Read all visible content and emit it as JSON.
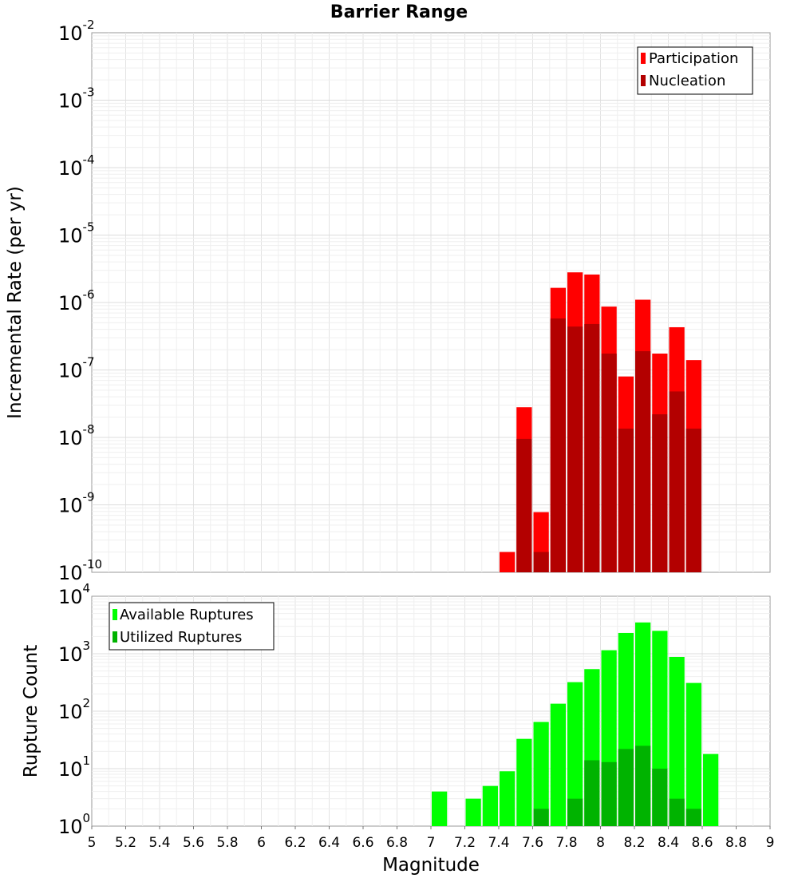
{
  "chart_data": [
    {
      "type": "bar",
      "title": "Barrier Range",
      "xlabel": "",
      "ylabel": "Incremental Rate (per yr)",
      "yscale": "log",
      "ylim": [
        1e-10,
        0.01
      ],
      "xlim": [
        5,
        9
      ],
      "ytick_exponents": [
        "-2",
        "-3",
        "-4",
        "-5",
        "-6",
        "-7",
        "-8",
        "-9",
        "-10"
      ],
      "grid": true,
      "legend_position": "top-right",
      "x": [
        7.45,
        7.55,
        7.65,
        7.75,
        7.85,
        7.95,
        8.05,
        8.15,
        8.25,
        8.35,
        8.45,
        8.55
      ],
      "series": [
        {
          "name": "Participation",
          "color": "#ff0000",
          "values": [
            2e-10,
            2.8e-08,
            7.8e-10,
            1.65e-06,
            2.8e-06,
            2.6e-06,
            8.7e-07,
            8e-08,
            1.1e-06,
            1.75e-07,
            4.3e-07,
            1.4e-07
          ]
        },
        {
          "name": "Nucleation",
          "color": "#b30000",
          "values": [
            null,
            9.5e-09,
            2e-10,
            5.8e-07,
            4.4e-07,
            4.8e-07,
            1.75e-07,
            1.35e-08,
            1.9e-07,
            2.2e-08,
            4.8e-08,
            1.35e-08
          ]
        }
      ]
    },
    {
      "type": "bar",
      "xlabel": "Magnitude",
      "ylabel": "Rupture Count",
      "yscale": "log",
      "ylim": [
        1,
        10000
      ],
      "xlim": [
        5,
        9
      ],
      "ytick_exponents": [
        "4",
        "3",
        "2",
        "1",
        "0"
      ],
      "xticks": [
        "5",
        "5.2",
        "5.4",
        "5.6",
        "5.8",
        "6",
        "6.2",
        "6.4",
        "6.6",
        "6.8",
        "7",
        "7.2",
        "7.4",
        "7.6",
        "7.8",
        "8",
        "8.2",
        "8.4",
        "8.6",
        "8.8",
        "9"
      ],
      "grid": true,
      "legend_position": "top-left",
      "x": [
        7.05,
        7.25,
        7.35,
        7.45,
        7.55,
        7.65,
        7.75,
        7.85,
        7.95,
        8.05,
        8.15,
        8.25,
        8.35,
        8.45,
        8.55,
        8.65
      ],
      "series": [
        {
          "name": "Available Ruptures",
          "color": "#00ff00",
          "values": [
            4,
            3,
            5,
            9,
            33,
            65,
            135,
            320,
            540,
            1150,
            2300,
            3500,
            2500,
            880,
            310,
            18
          ]
        },
        {
          "name": "Utilized Ruptures",
          "color": "#00b300",
          "values": [
            null,
            null,
            null,
            1,
            1,
            2,
            1,
            3,
            14,
            13,
            22,
            25,
            10,
            3,
            2,
            null
          ]
        }
      ]
    }
  ]
}
